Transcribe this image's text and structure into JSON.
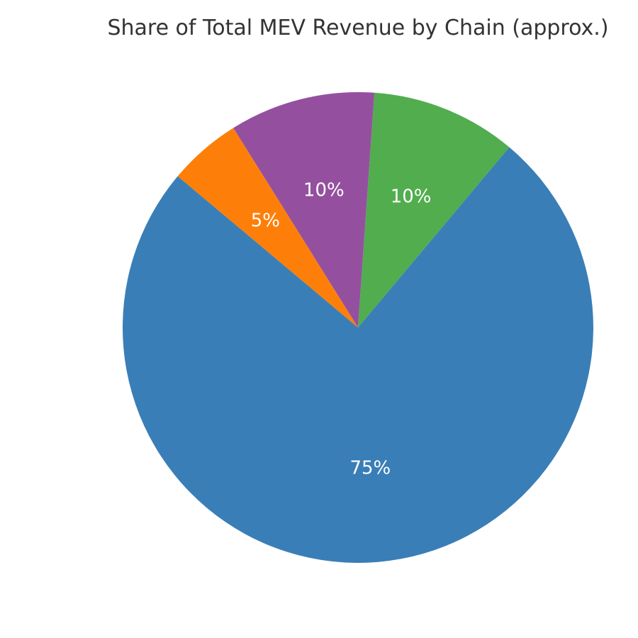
{
  "chart_data": {
    "type": "pie",
    "title": "Share of Total MEV Revenue by Chain (approx.)",
    "start_angle_deg": 140,
    "direction": "counterclockwise",
    "slices": [
      {
        "label": "75%",
        "value": 75,
        "color": "#3a7eb7"
      },
      {
        "label": "10%",
        "value": 10,
        "color": "#51ad4e"
      },
      {
        "label": "10%",
        "value": 10,
        "color": "#94509f"
      },
      {
        "label": "5%",
        "value": 5,
        "color": "#fd7f0a"
      }
    ]
  }
}
